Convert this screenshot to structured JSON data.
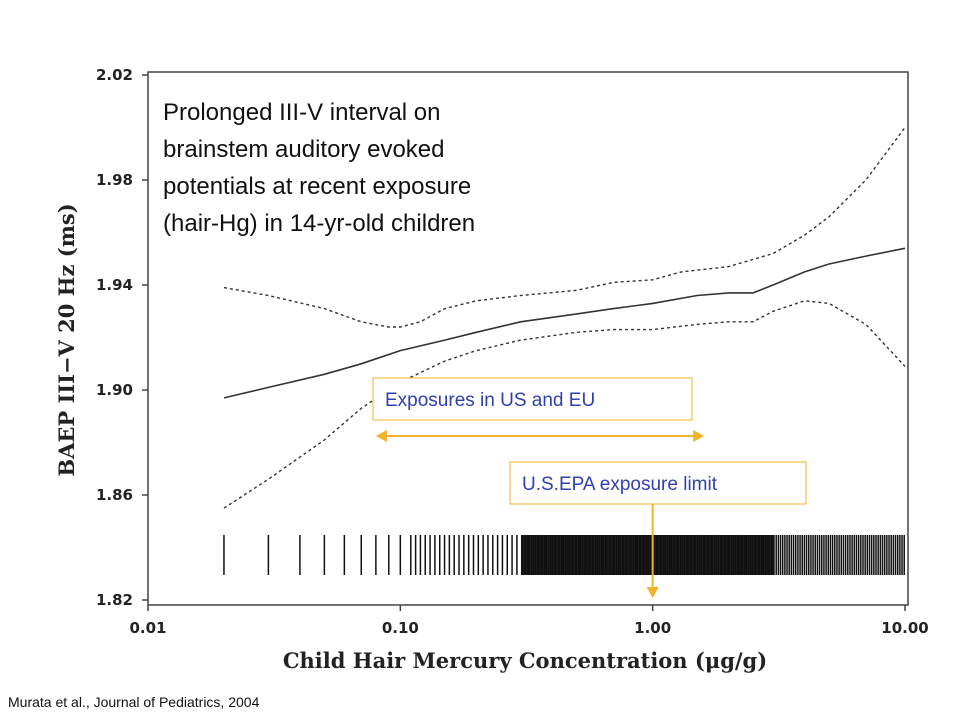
{
  "chart_data": {
    "type": "line",
    "title": "Prolonged III-V interval on brainstem auditory evoked potentials at recent exposure (hair-Hg) in 14-yr-old children",
    "title_lines": [
      "Prolonged III-V interval on",
      "brainstem auditory evoked",
      "potentials at recent exposure",
      "(hair-Hg) in 14-yr-old children"
    ],
    "xlabel": "Child Hair Mercury Concentration (μg/g)",
    "ylabel": "BAEP III−V 20 Hz (ms)",
    "x_scale": "log",
    "xlim": [
      0.01,
      10.0
    ],
    "ylim": [
      1.82,
      2.02
    ],
    "x_ticks": [
      "0.01",
      "0.10",
      "1.00",
      "10.00"
    ],
    "x_tick_values": [
      0.01,
      0.1,
      1.0,
      10.0
    ],
    "y_ticks": [
      "1.82",
      "1.86",
      "1.90",
      "1.94",
      "1.98",
      "2.02"
    ],
    "y_tick_values": [
      1.82,
      1.86,
      1.9,
      1.94,
      1.98,
      2.02
    ],
    "grid": false,
    "legend": "none",
    "series": [
      {
        "style": "solid",
        "x": [
          0.02,
          0.03,
          0.05,
          0.07,
          0.1,
          0.15,
          0.2,
          0.3,
          0.5,
          0.7,
          1.0,
          1.5,
          2.0,
          2.5,
          3.0,
          4.0,
          5.0,
          7.0,
          10.0
        ],
        "y": [
          1.897,
          1.901,
          1.906,
          1.91,
          1.915,
          1.919,
          1.922,
          1.926,
          1.929,
          1.931,
          1.933,
          1.936,
          1.937,
          1.937,
          1.94,
          1.945,
          1.948,
          1.951,
          1.954
        ]
      },
      {
        "style": "dashed",
        "x": [
          0.02,
          0.03,
          0.05,
          0.07,
          0.09,
          0.1,
          0.12,
          0.15,
          0.2,
          0.3,
          0.5,
          0.7,
          1.0,
          1.3,
          2.0,
          3.0,
          4.0,
          5.0,
          7.0,
          10.0
        ],
        "y": [
          1.939,
          1.936,
          1.931,
          1.926,
          1.924,
          1.924,
          1.926,
          1.931,
          1.934,
          1.936,
          1.938,
          1.941,
          1.942,
          1.945,
          1.947,
          1.952,
          1.959,
          1.966,
          1.98,
          2.0
        ]
      },
      {
        "style": "dashed",
        "x": [
          0.02,
          0.03,
          0.05,
          0.07,
          0.1,
          0.15,
          0.2,
          0.3,
          0.5,
          0.7,
          1.0,
          1.5,
          2.0,
          2.5,
          3.0,
          4.0,
          5.0,
          7.0,
          10.0
        ],
        "y": [
          1.855,
          1.866,
          1.881,
          1.893,
          1.903,
          1.911,
          1.915,
          1.919,
          1.922,
          1.923,
          1.923,
          1.925,
          1.926,
          1.926,
          1.93,
          1.934,
          1.933,
          1.925,
          1.909
        ]
      }
    ],
    "annotations": {
      "range_label": "Exposures in US and EU",
      "range_x": [
        0.08,
        1.6
      ],
      "limit_label": "U.S.EPA exposure limit",
      "limit_x": 1.0
    },
    "colors": {
      "lines": "#333333",
      "annotation_box": "#f2b32a",
      "annotation_arrow": "#f2b32a",
      "annotation_text": "#3040b0"
    }
  },
  "citation": "Murata et al., Journal of Pediatrics, 2004"
}
